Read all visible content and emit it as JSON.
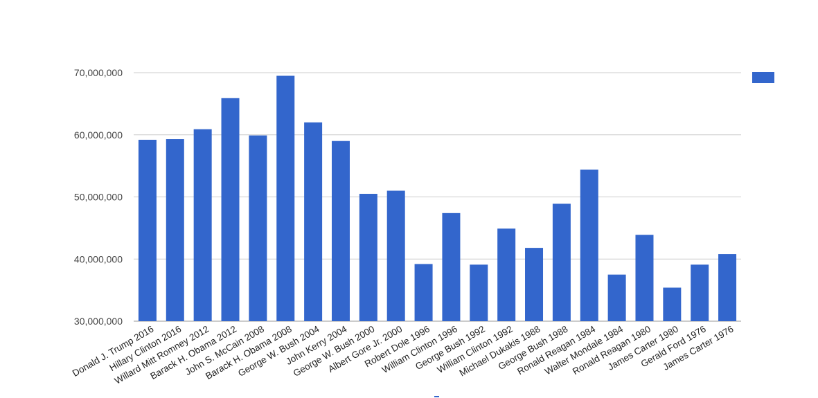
{
  "chart_data": {
    "type": "bar",
    "title": "",
    "xlabel": "",
    "ylabel": "",
    "ylim": [
      30000000,
      70000000
    ],
    "yticks": [
      "30,000,000",
      "40,000,000",
      "50,000,000",
      "60,000,000",
      "70,000,000"
    ],
    "ytick_values": [
      30000000,
      40000000,
      50000000,
      60000000,
      70000000
    ],
    "grid": true,
    "legend": {
      "position": "top-right",
      "entries": [
        {
          "name": "",
          "color": "#3366cc"
        }
      ]
    },
    "bar_color": "#3366cc",
    "categories": [
      "Donald J. Trump 2016",
      "Hillary Clinton 2016",
      "Willard Mitt Romney 2012",
      "Barack H. Obama 2012",
      "John S. McCain 2008",
      "Barack H. Obama 2008",
      "George W. Bush 2004",
      "John Kerry 2004",
      "George W. Bush 2000",
      "Albert Gore Jr. 2000",
      "Robert Dole 1996",
      "William Clinton 1996",
      "George Bush 1992",
      "William Clinton 1992",
      "Michael Dukakis 1988",
      "George Bush 1988",
      "Ronald Reagan 1984",
      "Walter Mondale 1984",
      "Ronald Reagan 1980",
      "James Carter 1980",
      "Gerald Ford 1976",
      "James Carter 1976"
    ],
    "values": [
      59200000,
      59300000,
      60900000,
      65900000,
      59900000,
      69500000,
      62000000,
      59000000,
      50500000,
      51000000,
      39200000,
      47400000,
      39100000,
      44900000,
      41800000,
      48900000,
      54400000,
      37500000,
      43900000,
      35400000,
      39100000,
      40800000
    ]
  }
}
